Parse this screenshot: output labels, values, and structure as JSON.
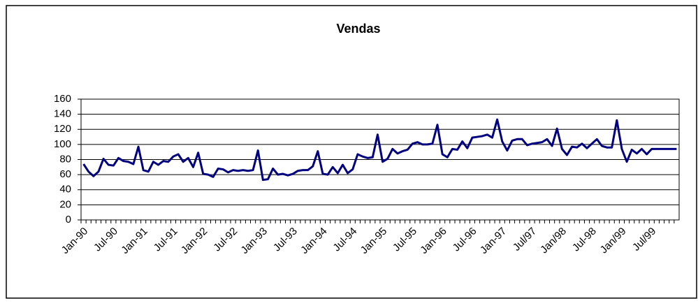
{
  "chart_data": {
    "type": "line",
    "title": "Vendas",
    "categories": [
      "Jan-90",
      null,
      null,
      null,
      null,
      null,
      "Jul-90",
      null,
      null,
      null,
      null,
      null,
      "Jan-91",
      null,
      null,
      null,
      null,
      null,
      "Jul-91",
      null,
      null,
      null,
      null,
      null,
      "Jan-92",
      null,
      null,
      null,
      null,
      null,
      "Jul-92",
      null,
      null,
      null,
      null,
      null,
      "Jan-93",
      null,
      null,
      null,
      null,
      null,
      "Jul-93",
      null,
      null,
      null,
      null,
      null,
      "Jan-94",
      null,
      null,
      null,
      null,
      null,
      "Jul-94",
      null,
      null,
      null,
      null,
      null,
      "Jan-95",
      null,
      null,
      null,
      null,
      null,
      "Jul-95",
      null,
      null,
      null,
      null,
      null,
      "Jan-96",
      null,
      null,
      null,
      null,
      null,
      "Jul-96",
      null,
      null,
      null,
      null,
      null,
      "Jan-97",
      null,
      null,
      null,
      null,
      null,
      "Jul/97",
      null,
      null,
      null,
      null,
      null,
      "Jan/98",
      null,
      null,
      null,
      null,
      null,
      "Jul-98",
      null,
      null,
      null,
      null,
      null,
      "Jan/99",
      null,
      null,
      null,
      null,
      null,
      "Jul/99",
      null,
      null,
      null,
      null,
      null
    ],
    "values": [
      74,
      64,
      58,
      64,
      81,
      73,
      72,
      82,
      78,
      77,
      74,
      97,
      66,
      64,
      77,
      73,
      78,
      77,
      84,
      87,
      77,
      82,
      70,
      89,
      61,
      60,
      57,
      68,
      67,
      63,
      66,
      65,
      66,
      65,
      66,
      92,
      53,
      54,
      68,
      60,
      61,
      59,
      61,
      65,
      66,
      66,
      71,
      91,
      61,
      60,
      70,
      62,
      73,
      62,
      67,
      87,
      84,
      82,
      83,
      113,
      77,
      81,
      94,
      88,
      91,
      93,
      101,
      103,
      100,
      100,
      101,
      126,
      87,
      83,
      94,
      93,
      104,
      95,
      109,
      110,
      111,
      113,
      109,
      133,
      104,
      92,
      105,
      107,
      107,
      99,
      101,
      102,
      103,
      107,
      98,
      121,
      94,
      86,
      97,
      96,
      101,
      95,
      101,
      107,
      98,
      96,
      96,
      132,
      94,
      77,
      93,
      88,
      94,
      87,
      94,
      94,
      94,
      94,
      94,
      94
    ],
    "color": "#000080",
    "ylim": [
      0,
      160
    ],
    "yticks": [
      0,
      20,
      40,
      60,
      80,
      100,
      120,
      140,
      160
    ],
    "grid": true
  }
}
